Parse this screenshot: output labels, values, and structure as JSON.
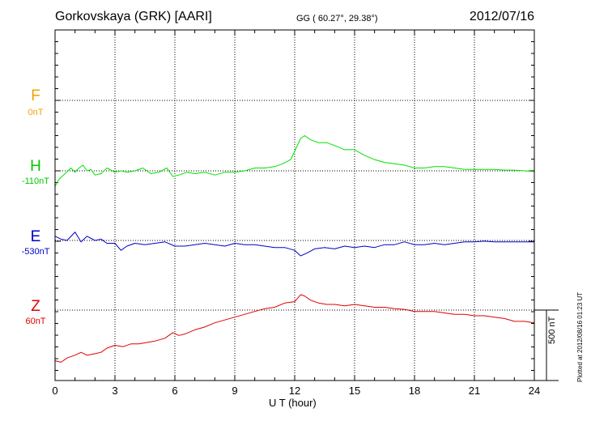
{
  "header": {
    "title": "Gorkovskaya (GRK)  [AARI]",
    "coords": "GG ( 60.27°,  29.38°)",
    "date": "2012/07/16"
  },
  "footer": {
    "plotted": "Plotted at 2012/08/16 01:23 UT"
  },
  "chart_data": {
    "type": "line",
    "xlabel": "U T (hour)",
    "xlim": [
      0,
      24
    ],
    "xticks": [
      0,
      3,
      6,
      9,
      12,
      15,
      18,
      21,
      24
    ],
    "scale_bar": {
      "value": 500,
      "label": "500 nT"
    },
    "grid": true,
    "series": [
      {
        "name": "F",
        "baseline": "0nT",
        "color": "#f5a000",
        "values": []
      },
      {
        "name": "H",
        "baseline": "-110nT",
        "color": "#00e000",
        "x": [
          0,
          0.2,
          0.5,
          0.8,
          1.0,
          1.2,
          1.4,
          1.6,
          1.8,
          2.0,
          2.3,
          2.6,
          3.0,
          3.3,
          3.6,
          4.0,
          4.4,
          4.8,
          5.2,
          5.6,
          5.9,
          6.2,
          6.6,
          7.0,
          7.5,
          8.0,
          8.5,
          9.0,
          9.5,
          10.0,
          10.5,
          11.0,
          11.4,
          11.8,
          12.1,
          12.3,
          12.5,
          12.8,
          13.2,
          13.6,
          14.0,
          14.5,
          15.0,
          15.5,
          16.0,
          16.5,
          17.0,
          17.5,
          18.0,
          18.5,
          19.0,
          19.5,
          20.0,
          20.5,
          21.0,
          21.5,
          22.0,
          22.5,
          23.0,
          23.5,
          24.0
        ],
        "values": [
          -110,
          -60,
          -20,
          20,
          -10,
          20,
          40,
          0,
          10,
          -30,
          -20,
          20,
          -10,
          0,
          -10,
          0,
          20,
          -20,
          -10,
          20,
          -40,
          -30,
          -10,
          -20,
          -10,
          -30,
          -10,
          -10,
          0,
          20,
          20,
          30,
          50,
          80,
          170,
          230,
          250,
          220,
          200,
          200,
          180,
          150,
          150,
          110,
          80,
          60,
          50,
          40,
          20,
          20,
          30,
          30,
          20,
          10,
          10,
          10,
          10,
          5,
          5,
          0,
          -5
        ]
      },
      {
        "name": "E",
        "baseline": "-530nT",
        "color": "#0000c8",
        "x": [
          0,
          0.3,
          0.6,
          1.0,
          1.3,
          1.6,
          2.0,
          2.3,
          2.6,
          3.0,
          3.3,
          3.6,
          4.0,
          4.5,
          5.0,
          5.5,
          6.0,
          6.5,
          7.0,
          7.5,
          8.0,
          8.5,
          9.0,
          9.5,
          10.0,
          10.5,
          11.0,
          11.5,
          12.0,
          12.3,
          12.6,
          13.0,
          13.5,
          14.0,
          14.5,
          15.0,
          15.5,
          16.0,
          16.5,
          17.0,
          17.5,
          18.0,
          18.5,
          19.0,
          19.5,
          20.0,
          20.5,
          21.0,
          21.5,
          22.0,
          22.5,
          23.0,
          23.5,
          24.0
        ],
        "values": [
          30,
          10,
          0,
          60,
          -10,
          30,
          0,
          10,
          -20,
          -20,
          -70,
          -40,
          -20,
          -30,
          -20,
          -10,
          -40,
          -40,
          -30,
          -20,
          -30,
          -40,
          -20,
          -30,
          -30,
          -40,
          -50,
          -50,
          -70,
          -110,
          -90,
          -60,
          -50,
          -60,
          -40,
          -50,
          -40,
          -50,
          -30,
          -30,
          -10,
          -30,
          -30,
          -20,
          -30,
          -20,
          -10,
          -10,
          -5,
          -10,
          -10,
          -10,
          -10,
          -10
        ]
      },
      {
        "name": "Z",
        "baseline": "60nT",
        "color": "#e00000",
        "x": [
          0,
          0.3,
          0.6,
          1.0,
          1.3,
          1.6,
          2.0,
          2.3,
          2.6,
          3.0,
          3.4,
          3.8,
          4.2,
          4.6,
          5.0,
          5.5,
          5.9,
          6.2,
          6.5,
          7.0,
          7.5,
          8.0,
          8.5,
          9.0,
          9.5,
          10.0,
          10.5,
          11.0,
          11.5,
          12.0,
          12.3,
          12.5,
          12.8,
          13.2,
          13.6,
          14.0,
          14.5,
          15.0,
          15.5,
          16.0,
          16.5,
          17.0,
          17.5,
          18.0,
          18.5,
          19.0,
          19.5,
          20.0,
          20.5,
          21.0,
          21.5,
          22.0,
          22.5,
          23.0,
          23.5,
          24.0
        ],
        "values": [
          -360,
          -370,
          -340,
          -320,
          -300,
          -320,
          -310,
          -300,
          -270,
          -250,
          -260,
          -240,
          -240,
          -230,
          -220,
          -200,
          -160,
          -180,
          -170,
          -140,
          -120,
          -90,
          -70,
          -50,
          -30,
          -10,
          10,
          20,
          50,
          60,
          110,
          100,
          70,
          50,
          40,
          40,
          30,
          40,
          30,
          20,
          20,
          10,
          5,
          -10,
          -10,
          -10,
          -20,
          -30,
          -30,
          -40,
          -40,
          -50,
          -60,
          -80,
          -80,
          -90
        ]
      }
    ]
  }
}
